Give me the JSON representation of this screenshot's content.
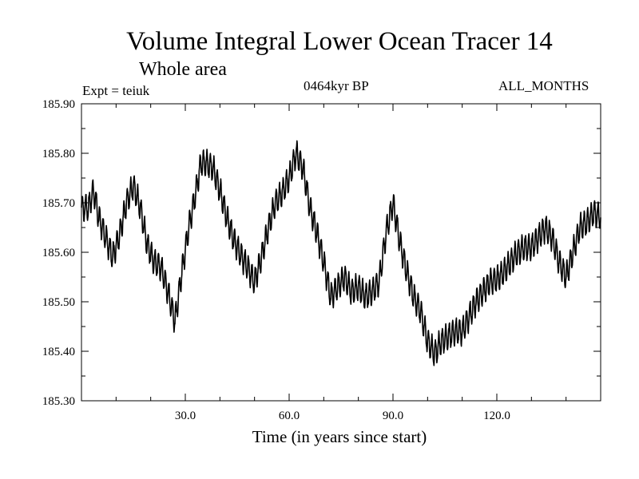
{
  "chart_data": {
    "type": "line",
    "title": "Volume Integral Lower Ocean Tracer 14",
    "subtitle": "Whole area",
    "experiment_label": "Expt = teiuk",
    "period_label": "0464kyr BP",
    "months_label": "ALL_MONTHS",
    "xlabel": "Time (in years since start)",
    "ylabel": "",
    "xlim": [
      0,
      150
    ],
    "ylim": [
      185.3,
      185.9
    ],
    "x_ticks": [
      30,
      60,
      90,
      120
    ],
    "x_tick_labels": [
      "30.0",
      "60.0",
      "90.0",
      "120.0"
    ],
    "x_minor_ticks": [
      10,
      20,
      40,
      50,
      70,
      80,
      100,
      110,
      130,
      140
    ],
    "y_ticks": [
      185.3,
      185.4,
      185.5,
      185.6,
      185.7,
      185.8,
      185.9
    ],
    "y_tick_labels": [
      "185.30",
      "185.40",
      "185.50",
      "185.60",
      "185.70",
      "185.80",
      "185.90"
    ],
    "grid": false,
    "series": [
      {
        "name": "Volume integral lower ocean tracer 14",
        "color": "#000000",
        "seasonal_amplitude": 0.025,
        "x": [
          0,
          2,
          3.5,
          5,
          7,
          9,
          11,
          13,
          15,
          17,
          19,
          21,
          23,
          25,
          27,
          29,
          31,
          33,
          34.5,
          36,
          38,
          40,
          42,
          44,
          46,
          48,
          50,
          52,
          54,
          56,
          58,
          60,
          62,
          64,
          66,
          68,
          70,
          72,
          74,
          76,
          78,
          80,
          82,
          84,
          86,
          88,
          90,
          92,
          94,
          96,
          98,
          100,
          102,
          104,
          106,
          108,
          110,
          112,
          114,
          116,
          118,
          120,
          122,
          124,
          126,
          128,
          130,
          132,
          134,
          136,
          138,
          140,
          142,
          144,
          146,
          148,
          150
        ],
        "y": [
          185.69,
          185.69,
          185.725,
          185.67,
          185.63,
          185.59,
          185.635,
          185.7,
          185.735,
          185.69,
          185.615,
          185.58,
          185.57,
          185.52,
          185.46,
          185.56,
          185.65,
          185.72,
          185.78,
          185.78,
          185.77,
          185.725,
          185.67,
          185.625,
          185.595,
          185.57,
          185.54,
          185.59,
          185.65,
          185.7,
          185.72,
          185.75,
          185.8,
          185.77,
          185.69,
          185.64,
          185.58,
          185.51,
          185.53,
          185.55,
          185.52,
          185.53,
          185.51,
          185.52,
          185.54,
          185.64,
          185.7,
          185.62,
          185.56,
          185.51,
          185.48,
          185.42,
          185.395,
          185.42,
          185.43,
          185.44,
          185.44,
          185.47,
          185.5,
          185.52,
          185.54,
          185.545,
          185.56,
          185.58,
          185.6,
          185.61,
          185.61,
          185.63,
          185.65,
          185.63,
          185.58,
          185.55,
          185.6,
          185.65,
          185.66,
          185.68,
          185.67
        ]
      }
    ]
  }
}
